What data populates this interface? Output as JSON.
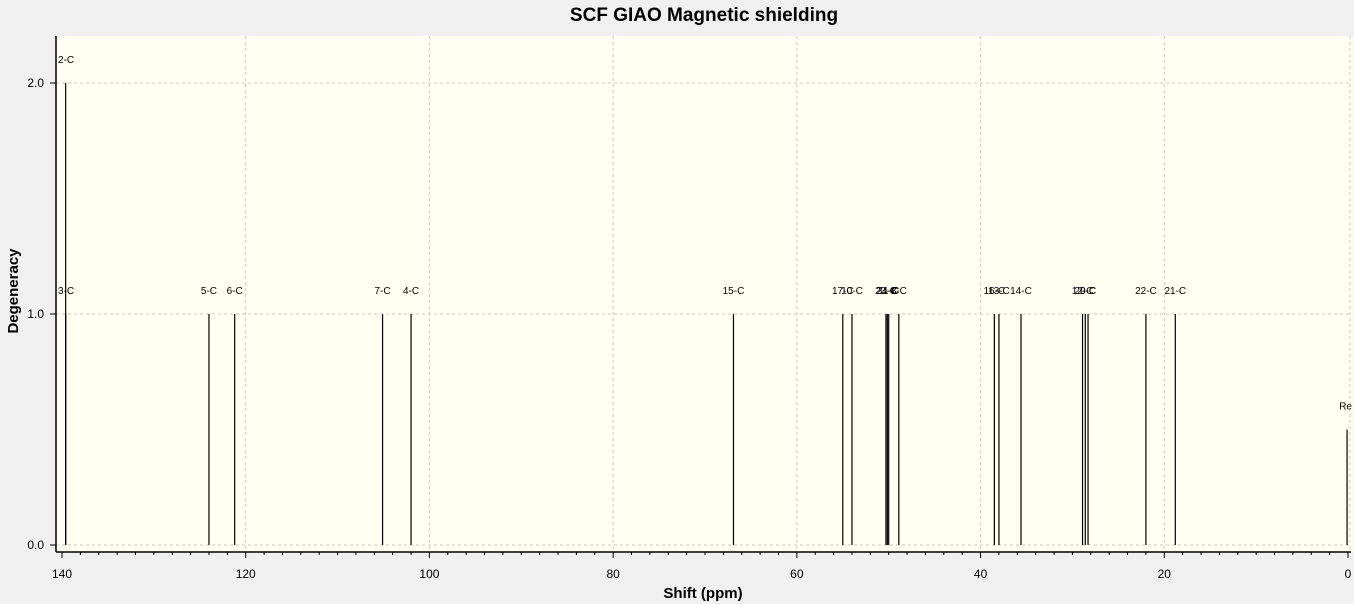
{
  "chart_data": {
    "type": "bar",
    "title": "SCF GIAO Magnetic shielding",
    "xlabel": "Shift (ppm)",
    "ylabel": "Degeneracy",
    "xlim": [
      140,
      0
    ],
    "ylim": [
      0,
      2.2
    ],
    "x_reversed": true,
    "x_ticks": [
      "140",
      "120",
      "100",
      "80",
      "60",
      "40",
      "20",
      "0"
    ],
    "y_ticks": [
      "0.0",
      "1.0",
      "2.0"
    ],
    "grid": true,
    "colors": {
      "plot_background": "#fffff2",
      "page_background": "#f0f0f0",
      "line": "#000000",
      "grid": "#c8c8c8"
    },
    "peaks": [
      {
        "label": "2-C",
        "x": 139.6,
        "y": 2.0
      },
      {
        "label": "3-C",
        "x": 139.6,
        "y": 1.0
      },
      {
        "label": "5-C",
        "x": 124.0,
        "y": 1.0
      },
      {
        "label": "6-C",
        "x": 121.2,
        "y": 1.0
      },
      {
        "label": "7-C",
        "x": 105.1,
        "y": 1.0
      },
      {
        "label": "4-C",
        "x": 102.0,
        "y": 1.0
      },
      {
        "label": "15-C",
        "x": 66.9,
        "y": 1.0
      },
      {
        "label": "17-C",
        "x": 55.0,
        "y": 1.0
      },
      {
        "label": "10-C",
        "x": 54.0,
        "y": 1.0
      },
      {
        "label": "23-C",
        "x": 50.3,
        "y": 1.0
      },
      {
        "label": "24-C",
        "x": 50.15,
        "y": 1.0
      },
      {
        "label": "11-C",
        "x": 50.0,
        "y": 1.0
      },
      {
        "label": "8-C",
        "x": 48.9,
        "y": 1.0
      },
      {
        "label": "16-C",
        "x": 38.5,
        "y": 1.0
      },
      {
        "label": "13-C",
        "x": 38.0,
        "y": 1.0
      },
      {
        "label": "14-C",
        "x": 35.6,
        "y": 1.0
      },
      {
        "label": "12-C",
        "x": 28.9,
        "y": 1.0
      },
      {
        "label": "20-C",
        "x": 28.6,
        "y": 1.0
      },
      {
        "label": "9-C",
        "x": 28.3,
        "y": 1.0
      },
      {
        "label": "22-C",
        "x": 22.0,
        "y": 1.0
      },
      {
        "label": "21-C",
        "x": 18.8,
        "y": 1.0
      },
      {
        "label": "Re",
        "x": 0.1,
        "y": 0.5
      }
    ]
  }
}
